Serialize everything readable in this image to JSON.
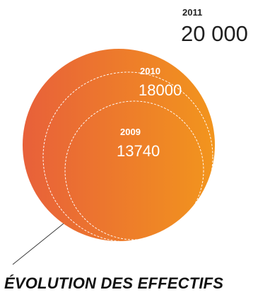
{
  "chart_data": {
    "type": "bubble",
    "title": "ÉVOLUTION DES EFFECTIFS",
    "series": [
      {
        "year": "2011",
        "value_label": "20 000",
        "value": 20000
      },
      {
        "year": "2010",
        "value_label": "18000",
        "value": 18000
      },
      {
        "year": "2009",
        "value_label": "13740",
        "value": 13740
      }
    ],
    "colors": {
      "gradient_start": "#e8603a",
      "gradient_end": "#f2951d",
      "outline": "#ffffff",
      "text_dark": "#1f1f1f",
      "text_light": "#ffffff"
    }
  }
}
